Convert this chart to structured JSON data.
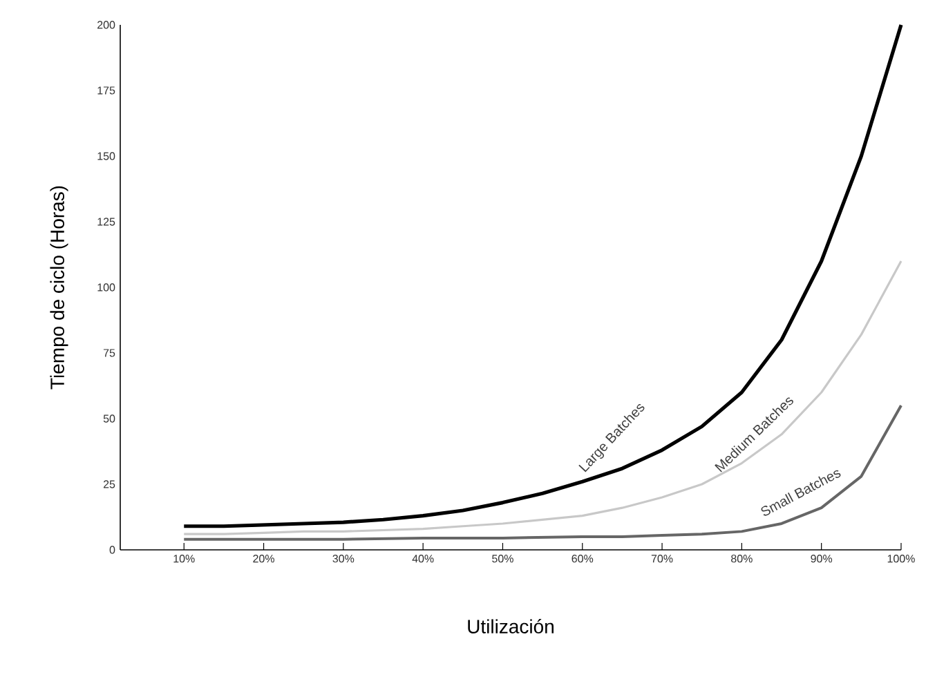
{
  "chart_data": {
    "type": "line",
    "xlabel": "Utilización",
    "ylabel": "Tiempo de ciclo (Horas)",
    "xlim": [
      2,
      100
    ],
    "ylim": [
      0,
      200
    ],
    "xticks": [
      {
        "value": 10,
        "label": "10%"
      },
      {
        "value": 20,
        "label": "20%"
      },
      {
        "value": 30,
        "label": "30%"
      },
      {
        "value": 40,
        "label": "40%"
      },
      {
        "value": 50,
        "label": "50%"
      },
      {
        "value": 60,
        "label": "60%"
      },
      {
        "value": 70,
        "label": "70%"
      },
      {
        "value": 80,
        "label": "80%"
      },
      {
        "value": 90,
        "label": "90%"
      },
      {
        "value": 100,
        "label": "100%"
      }
    ],
    "yticks": [
      0,
      25,
      50,
      75,
      100,
      125,
      150,
      175,
      200
    ],
    "grid": false,
    "marker": "none",
    "line_style": "solid",
    "series": [
      {
        "name": "Large Batches",
        "color": "#000000",
        "x": [
          10,
          15,
          20,
          25,
          30,
          35,
          40,
          45,
          50,
          55,
          60,
          65,
          70,
          75,
          80,
          85,
          90,
          95,
          100
        ],
        "values": [
          9,
          9,
          9.5,
          10,
          10.5,
          11.5,
          13,
          15,
          18,
          21.5,
          26,
          31,
          38,
          47,
          60,
          80,
          110,
          150,
          200
        ]
      },
      {
        "name": "Medium Batches",
        "color": "#c8c8c8",
        "x": [
          10,
          15,
          20,
          25,
          30,
          35,
          40,
          45,
          50,
          55,
          60,
          65,
          70,
          75,
          80,
          85,
          90,
          95,
          100
        ],
        "values": [
          6,
          6,
          6.5,
          7,
          7,
          7.5,
          8,
          9,
          10,
          11.5,
          13,
          16,
          20,
          25,
          33,
          44,
          60,
          82,
          110
        ]
      },
      {
        "name": "Small Batches",
        "color": "#666666",
        "x": [
          10,
          20,
          30,
          40,
          50,
          60,
          65,
          70,
          75,
          80,
          85,
          90,
          95,
          100
        ],
        "values": [
          4,
          4,
          4,
          4.5,
          4.5,
          5,
          5,
          5.5,
          6,
          7,
          10,
          16,
          28,
          55
        ]
      }
    ]
  }
}
